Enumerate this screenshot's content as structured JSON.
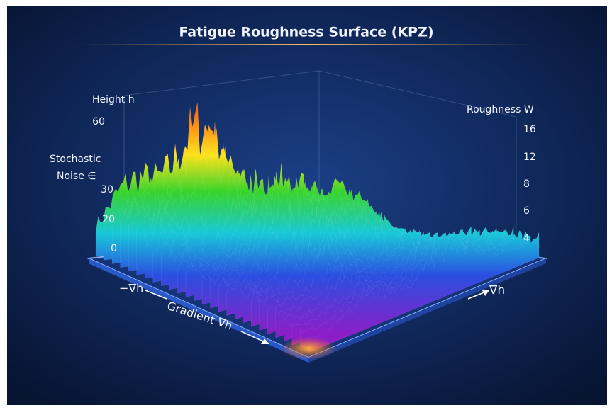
{
  "title": "Fatigue Roughness Surface (KPZ)",
  "left_axis": {
    "label": "Height h",
    "ticks": [
      60,
      30,
      20,
      0
    ]
  },
  "noise_label": [
    "Stochastic",
    "Noise ∈"
  ],
  "right_axis": {
    "label": "Roughness W",
    "ticks": [
      16,
      12,
      8,
      6,
      4
    ]
  },
  "base_labels": {
    "negative_gradient": "−∇h",
    "gradient": "Gradient ∇h",
    "positive_gradient": "∇h"
  }
}
